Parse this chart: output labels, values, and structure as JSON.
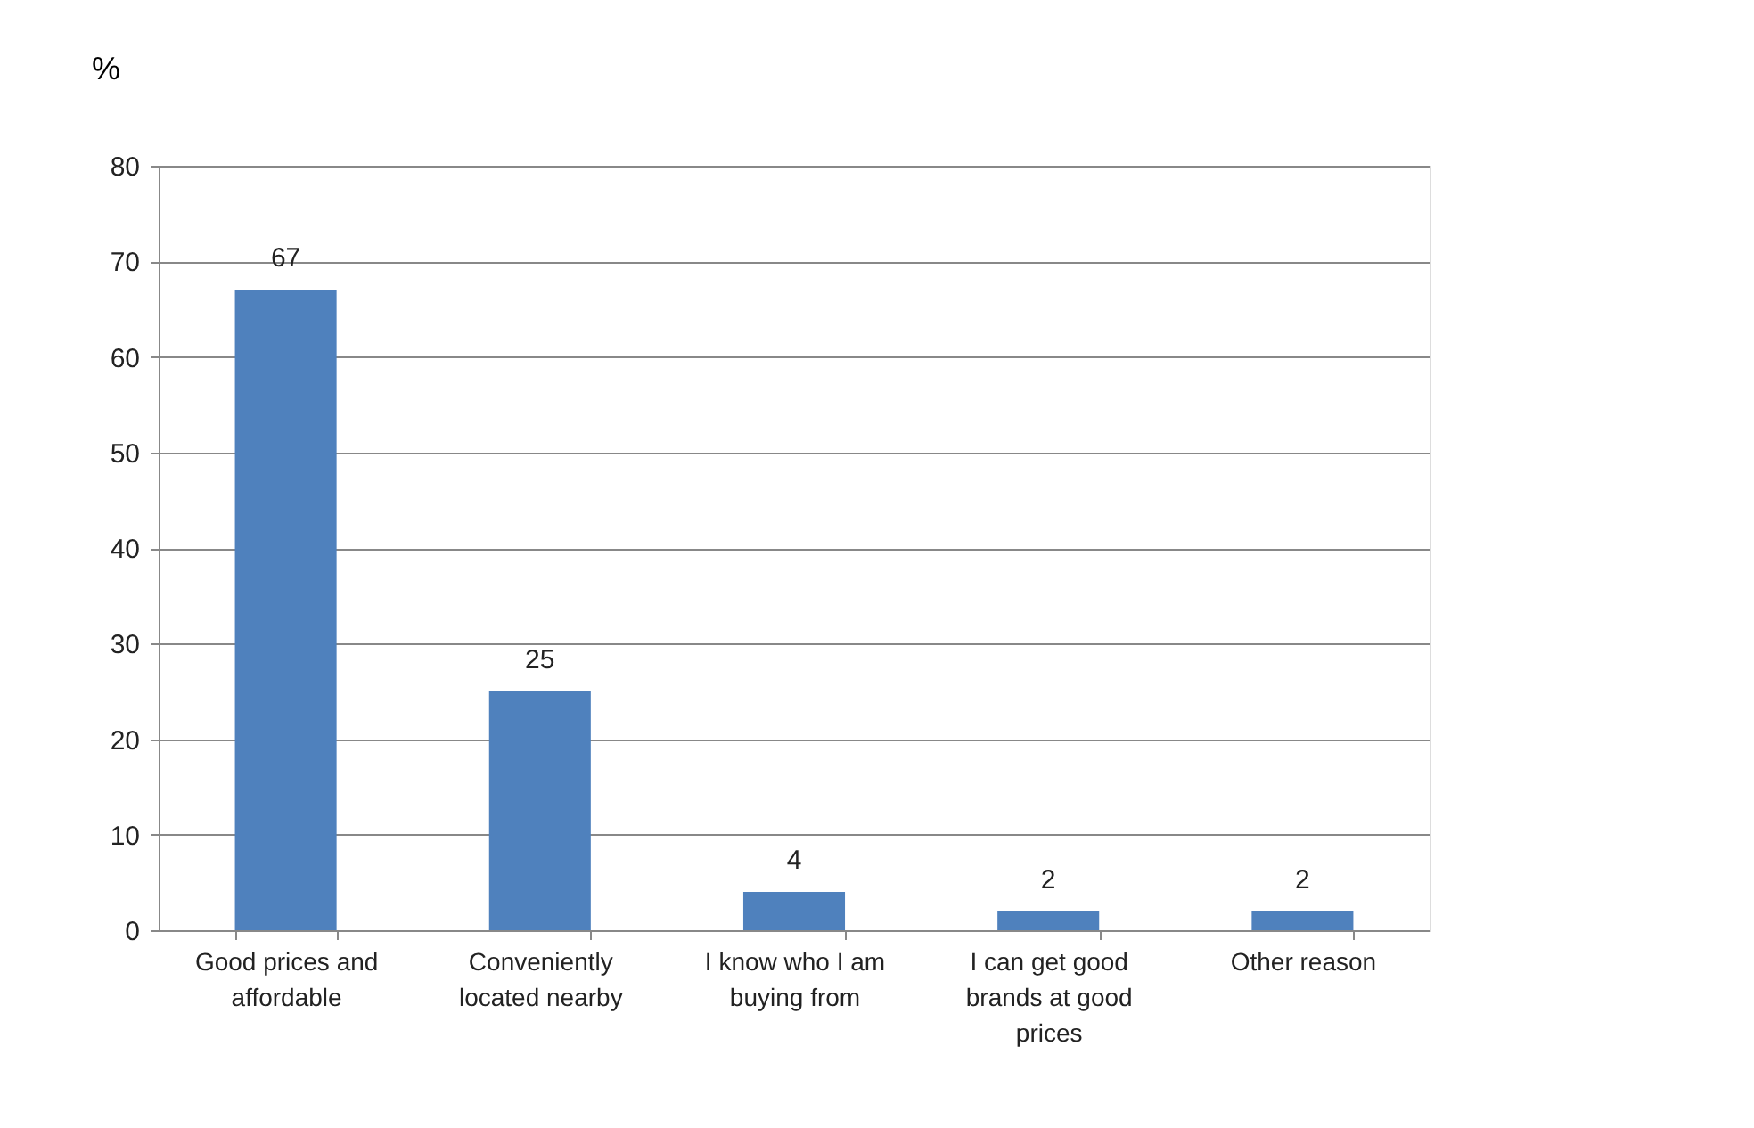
{
  "chart_data": {
    "type": "bar",
    "ylabel": "%",
    "categories": [
      "Good prices and affordable",
      "Conveniently located nearby",
      "I know who I am buying from",
      "I can get good brands at good prices",
      "Other reason"
    ],
    "values": [
      67,
      25,
      4,
      2,
      2
    ],
    "color": "#4f81bd",
    "data_labels": true,
    "ylim": [
      0,
      80
    ],
    "yticks": [
      0,
      10,
      20,
      30,
      40,
      50,
      60,
      70,
      80
    ],
    "grid": "y"
  }
}
